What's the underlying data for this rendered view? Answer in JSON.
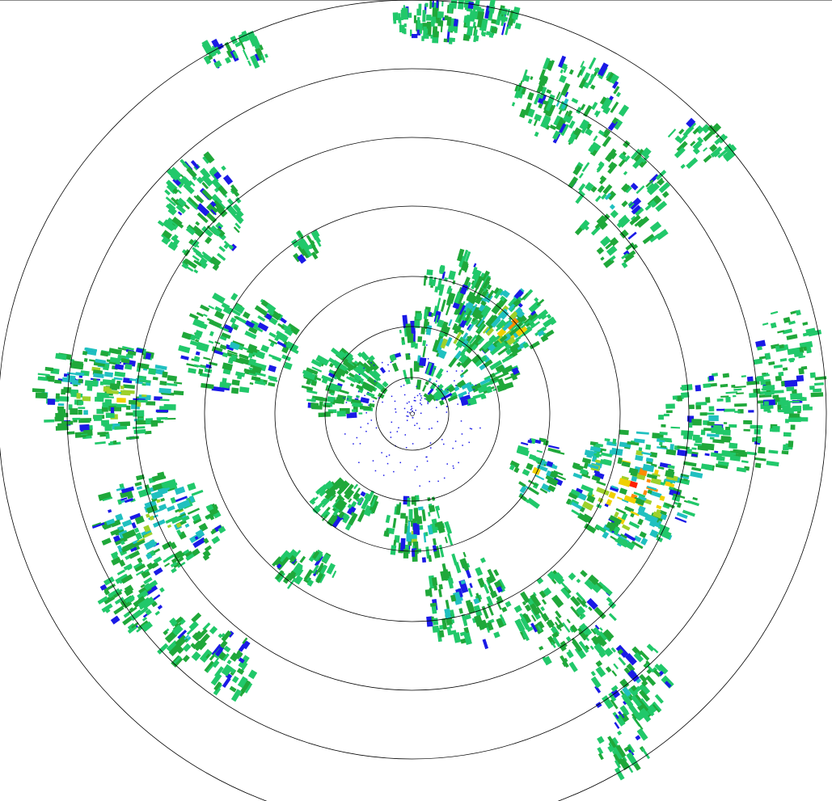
{
  "radar": {
    "product": "reflectivity-ppi",
    "range_ring_count": 7,
    "palette": {
      "weak": "#1a1ae6",
      "light": "#21c86a",
      "moderate": "#1fa83a",
      "mid": "#9ed12a",
      "strong": "#f0d000",
      "heavy": "#ff8a00",
      "intense": "#ff2000",
      "turquoise": "#20c0c0"
    },
    "ring_color": "#000000",
    "background": "#ffffff"
  }
}
